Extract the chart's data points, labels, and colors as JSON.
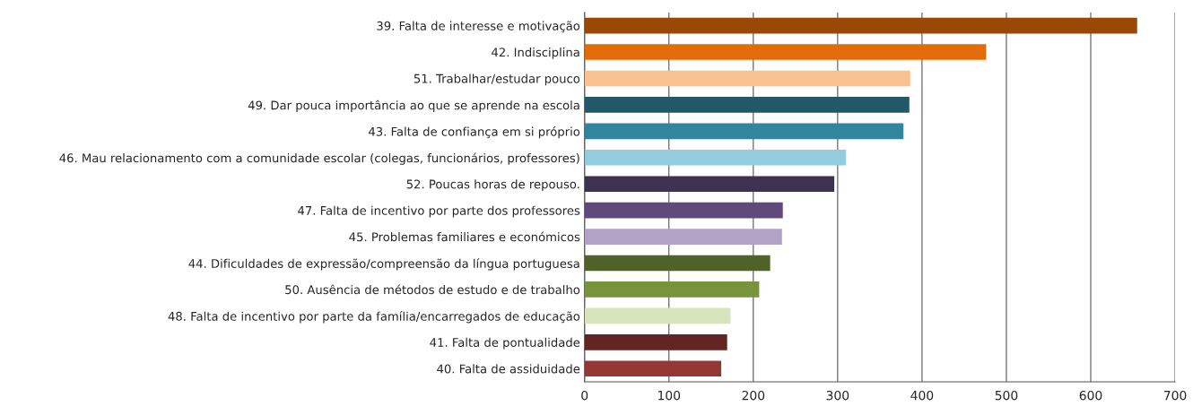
{
  "chart_data": {
    "type": "bar",
    "orientation": "horizontal",
    "categories": [
      "39. Falta de interesse e motivação",
      "42. Indisciplina",
      "51. Trabalhar/estudar pouco",
      "49. Dar pouca importância ao que se aprende na escola",
      "43. Falta de confiança em si próprio",
      "46. Mau relacionamento com a comunidade escolar (colegas, funcionários, professores)",
      "52. Poucas horas de repouso.",
      "47. Falta de incentivo por parte dos professores",
      "45. Problemas familiares e económicos",
      "44. Dificuldades de expressão/compreensão da língua portuguesa",
      "50. Ausência de métodos de estudo e de trabalho",
      "48. Falta de incentivo por parte da família/encarregados de educação",
      "41. Falta de pontualidade",
      "40. Falta de assiduidade"
    ],
    "values": [
      655,
      476,
      386,
      385,
      378,
      310,
      296,
      235,
      234,
      220,
      207,
      173,
      169,
      162
    ],
    "colors": [
      "#984807",
      "#e36c0a",
      "#fac090",
      "#215968",
      "#31859c",
      "#93cddd",
      "#3f3151",
      "#604a7b",
      "#b3a2c7",
      "#4f6228",
      "#77933c",
      "#d7e4bd",
      "#632523",
      "#953735"
    ],
    "xlim": [
      0,
      700
    ],
    "xticks": [
      0,
      100,
      200,
      300,
      400,
      500,
      600,
      700
    ],
    "grid": "x"
  }
}
